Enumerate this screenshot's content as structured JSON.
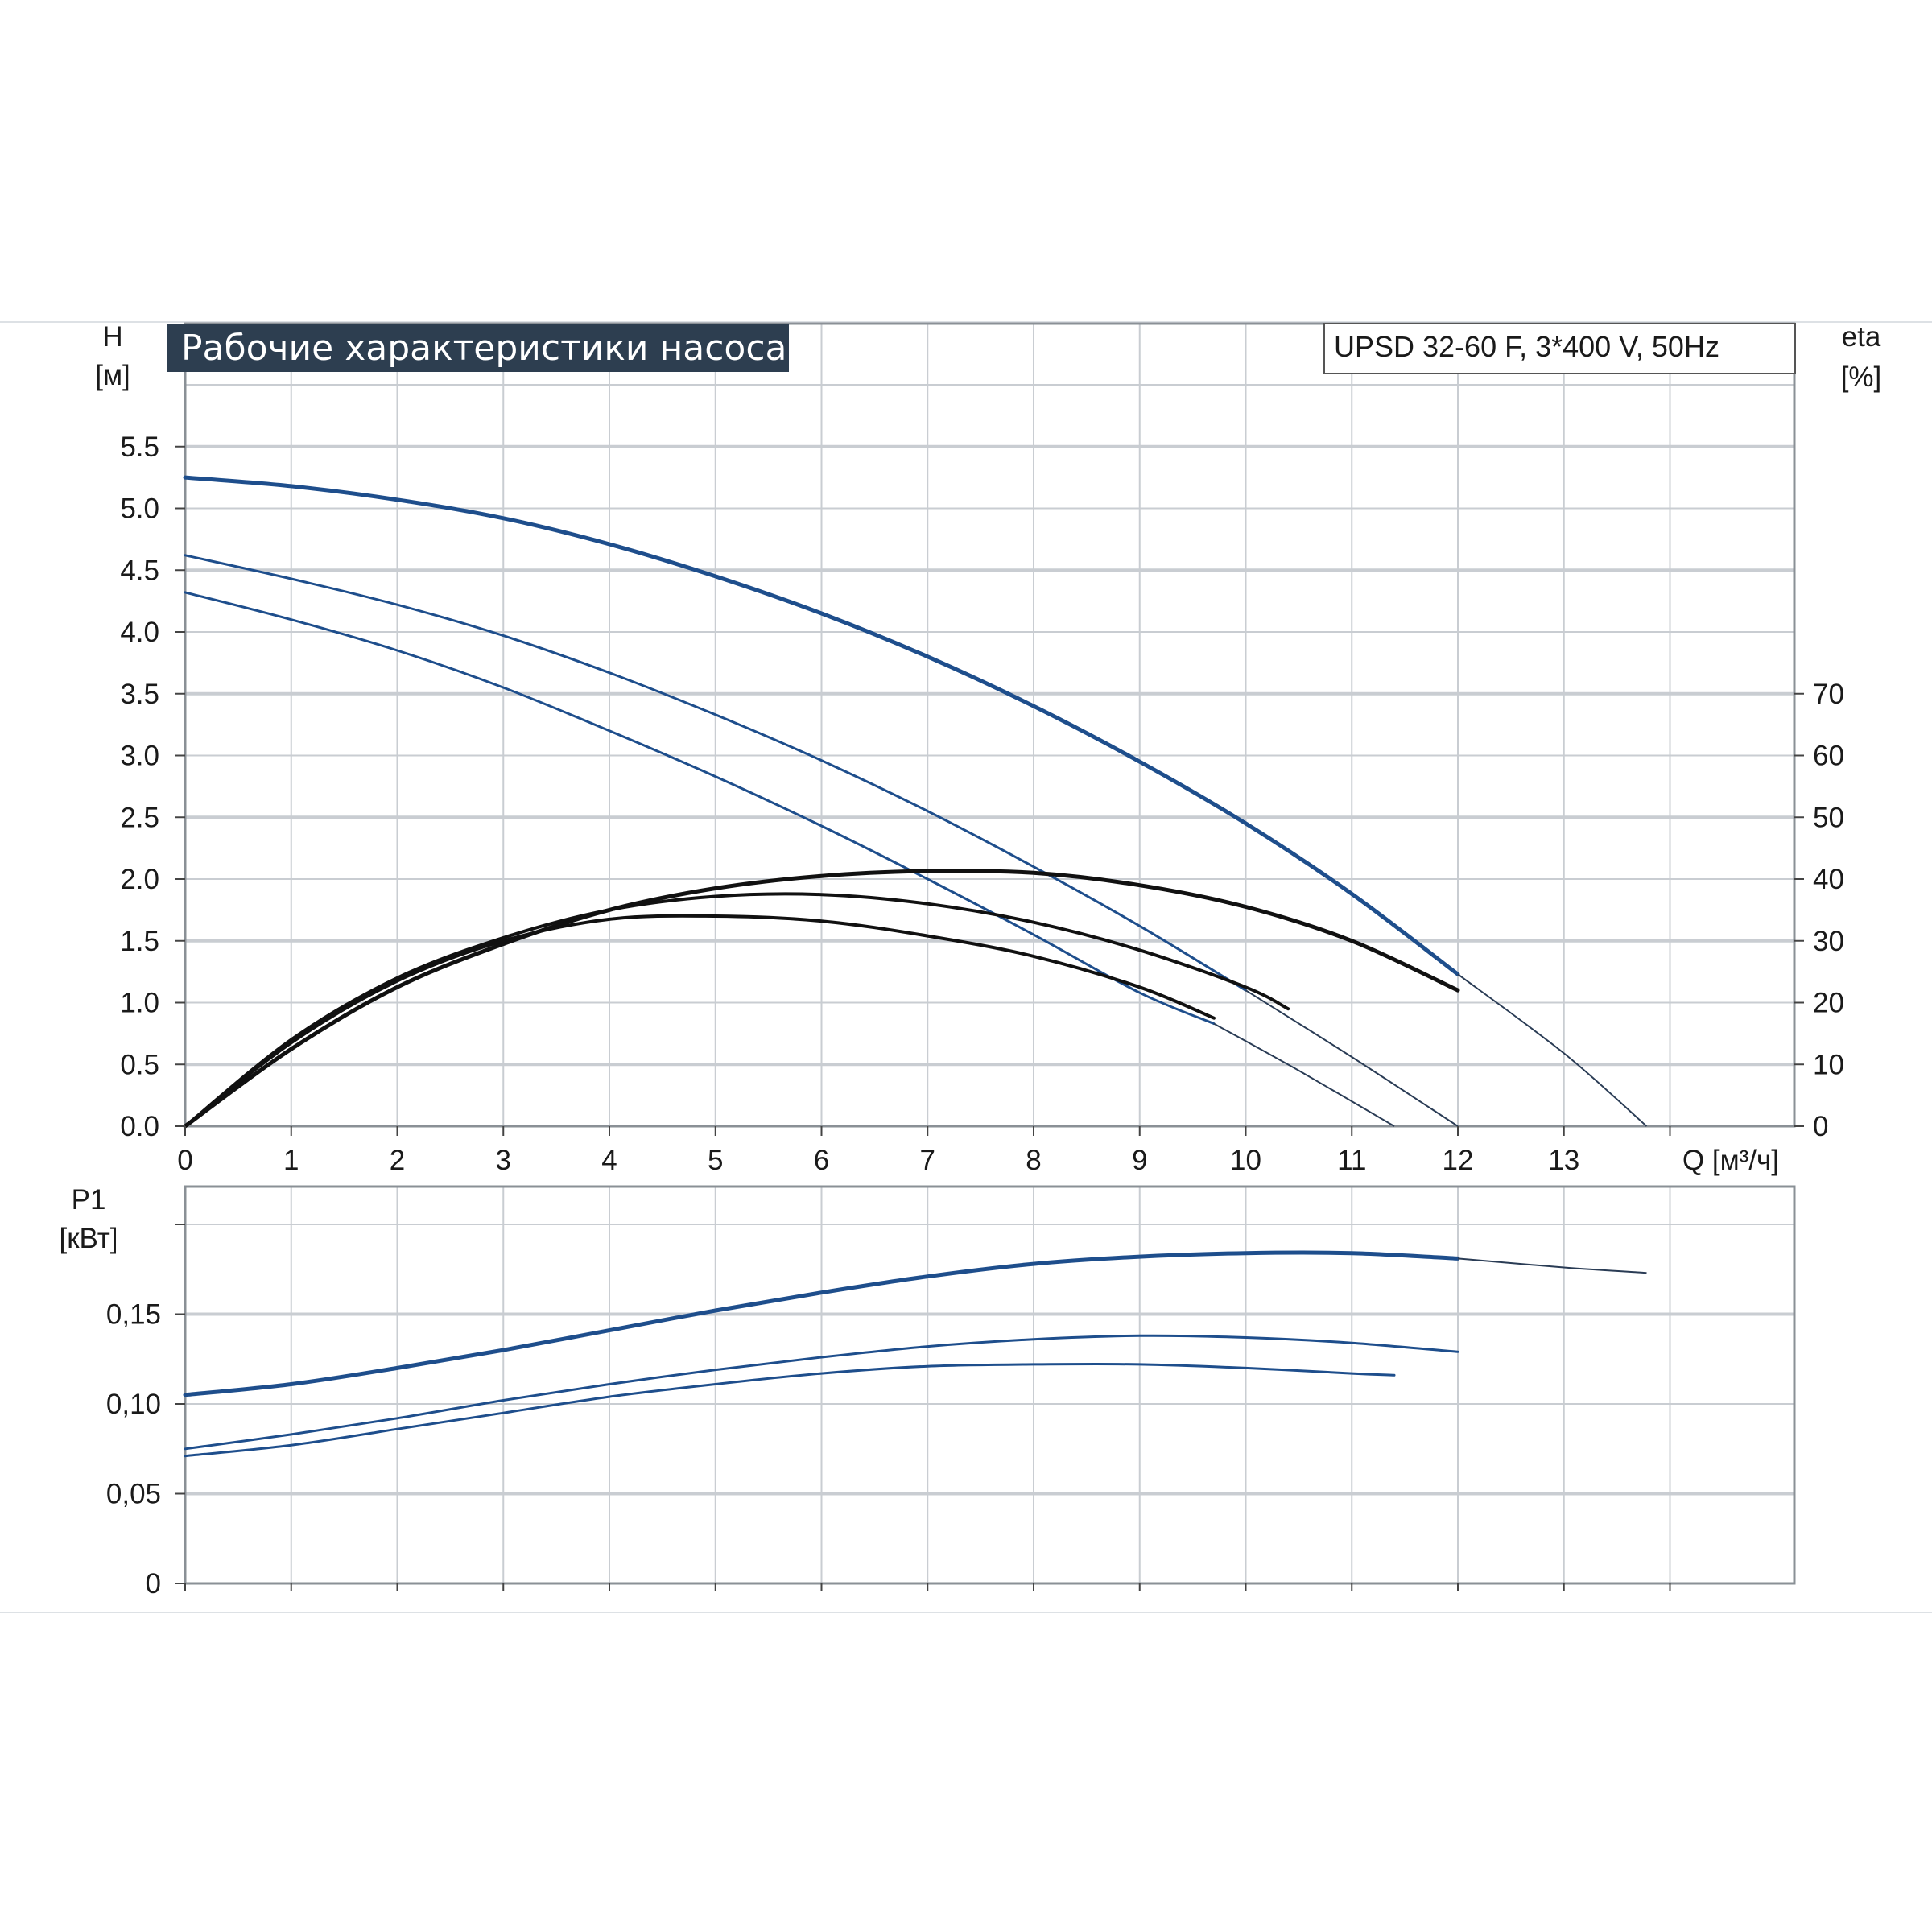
{
  "chart_data": {
    "type": "line",
    "title": "Рабочие характеристики насоса",
    "model": "UPSD 32-60 F, 3*400 V, 50Hz",
    "colors": {
      "head": "#1e4e8c",
      "eff": "#111111",
      "power": "#1e4e8c",
      "title_bg": "#2d3e50",
      "grid": "#c9cdd2"
    },
    "top": {
      "ylabel": "H",
      "yunit": "[м]",
      "y2label": "eta",
      "y2unit": "[%]",
      "xlabel": "Q [м³/ч]",
      "xlim": [
        0,
        15
      ],
      "ylim": [
        0,
        6
      ],
      "y2lim": [
        0,
        120
      ],
      "xticks": [
        "0",
        "1",
        "2",
        "3",
        "4",
        "5",
        "6",
        "7",
        "8",
        "9",
        "10",
        "11",
        "12",
        "13"
      ],
      "yticks": [
        "0.0",
        "0.5",
        "1.0",
        "1.5",
        "2.0",
        "2.5",
        "3.0",
        "3.5",
        "4.0",
        "4.5",
        "5.0",
        "5.5"
      ],
      "y2ticks": [
        "0",
        "10",
        "20",
        "30",
        "40",
        "50",
        "60",
        "70"
      ],
      "head_series": [
        {
          "points": [
            [
              0,
              5.25
            ],
            [
              1,
              5.18
            ],
            [
              2,
              5.07
            ],
            [
              3,
              4.92
            ],
            [
              4,
              4.71
            ],
            [
              5,
              4.45
            ],
            [
              6,
              4.15
            ],
            [
              7,
              3.8
            ],
            [
              8,
              3.4
            ],
            [
              9,
              2.95
            ],
            [
              10,
              2.45
            ],
            [
              11,
              1.88
            ],
            [
              12,
              1.23
            ]
          ],
          "extension": [
            [
              12,
              1.23
            ],
            [
              13,
              0.59
            ],
            [
              13.78,
              0
            ]
          ],
          "width": 5
        },
        {
          "points": [
            [
              0,
              4.62
            ],
            [
              1,
              4.43
            ],
            [
              2,
              4.22
            ],
            [
              3,
              3.97
            ],
            [
              4,
              3.67
            ],
            [
              5,
              3.33
            ],
            [
              6,
              2.96
            ],
            [
              7,
              2.55
            ],
            [
              8,
              2.1
            ],
            [
              9,
              1.62
            ],
            [
              10,
              1.1
            ]
          ],
          "extension": [
            [
              10,
              1.1
            ],
            [
              11,
              0.56
            ],
            [
              12,
              0
            ]
          ],
          "width": 3
        },
        {
          "points": [
            [
              0,
              4.32
            ],
            [
              1,
              4.1
            ],
            [
              2,
              3.85
            ],
            [
              3,
              3.55
            ],
            [
              4,
              3.2
            ],
            [
              5,
              2.83
            ],
            [
              6,
              2.43
            ],
            [
              7,
              2.0
            ],
            [
              8,
              1.55
            ],
            [
              9,
              1.08
            ],
            [
              9.7,
              0.83
            ]
          ],
          "extension": [
            [
              9.7,
              0.83
            ],
            [
              10.5,
              0.45
            ],
            [
              11.4,
              0
            ]
          ],
          "width": 3
        }
      ],
      "eff_series": [
        {
          "points": [
            [
              0,
              0
            ],
            [
              1,
              12.5
            ],
            [
              2,
              22.5
            ],
            [
              3,
              29.5
            ],
            [
              4,
              35
            ],
            [
              5,
              38.5
            ],
            [
              6,
              40.5
            ],
            [
              7,
              41.3
            ],
            [
              8,
              41
            ],
            [
              9,
              39
            ],
            [
              10,
              35.5
            ],
            [
              11,
              30
            ],
            [
              12,
              22
            ]
          ],
          "width": 5
        },
        {
          "points": [
            [
              0,
              0
            ],
            [
              1,
              14
            ],
            [
              2,
              24
            ],
            [
              3,
              30.5
            ],
            [
              4,
              35
            ],
            [
              5,
              37.2
            ],
            [
              6,
              37.5
            ],
            [
              7,
              36
            ],
            [
              8,
              33
            ],
            [
              9,
              28.5
            ],
            [
              10,
              22.5
            ],
            [
              10.4,
              19
            ]
          ],
          "width": 4
        },
        {
          "points": [
            [
              0,
              0
            ],
            [
              1,
              13.5
            ],
            [
              2,
              23.5
            ],
            [
              3,
              30
            ],
            [
              4,
              33.5
            ],
            [
              5,
              34
            ],
            [
              6,
              33.2
            ],
            [
              7,
              30.8
            ],
            [
              8,
              27.5
            ],
            [
              9,
              22.5
            ],
            [
              9.7,
              17.5
            ]
          ],
          "width": 4
        }
      ]
    },
    "bottom": {
      "ylabel": "P1",
      "yunit": "[кВт]",
      "xlim": [
        0,
        15
      ],
      "ylim": [
        0,
        0.2
      ],
      "yticks": [
        "0",
        "0,05",
        "0,10",
        "0,15"
      ],
      "power_series": [
        {
          "points": [
            [
              0,
              0.105
            ],
            [
              1,
              0.111
            ],
            [
              2,
              0.12
            ],
            [
              3,
              0.13
            ],
            [
              4,
              0.141
            ],
            [
              5,
              0.152
            ],
            [
              6,
              0.162
            ],
            [
              7,
              0.171
            ],
            [
              8,
              0.178
            ],
            [
              9,
              0.182
            ],
            [
              10,
              0.184
            ],
            [
              11,
              0.184
            ],
            [
              12,
              0.181
            ]
          ],
          "extension": [
            [
              12,
              0.181
            ],
            [
              13,
              0.176
            ],
            [
              13.78,
              0.173
            ]
          ],
          "width": 5
        },
        {
          "points": [
            [
              0,
              0.075
            ],
            [
              1,
              0.083
            ],
            [
              2,
              0.092
            ],
            [
              3,
              0.102
            ],
            [
              4,
              0.111
            ],
            [
              5,
              0.119
            ],
            [
              6,
              0.126
            ],
            [
              7,
              0.132
            ],
            [
              8,
              0.136
            ],
            [
              9,
              0.138
            ],
            [
              10,
              0.137
            ],
            [
              11,
              0.134
            ],
            [
              12,
              0.129
            ]
          ],
          "width": 3
        },
        {
          "points": [
            [
              0,
              0.071
            ],
            [
              1,
              0.077
            ],
            [
              2,
              0.086
            ],
            [
              3,
              0.095
            ],
            [
              4,
              0.104
            ],
            [
              5,
              0.111
            ],
            [
              6,
              0.117
            ],
            [
              7,
              0.121
            ],
            [
              8,
              0.122
            ],
            [
              9,
              0.122
            ],
            [
              10,
              0.12
            ],
            [
              11,
              0.117
            ],
            [
              11.4,
              0.116
            ]
          ],
          "width": 3
        }
      ]
    }
  }
}
